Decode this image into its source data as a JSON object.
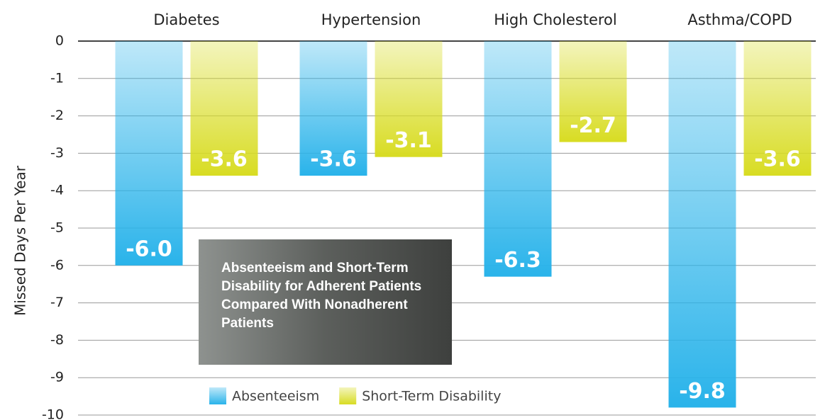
{
  "chart_data": {
    "type": "bar",
    "title": "Absenteeism and Short-Term Disability for Adherent Patients Compared With Nonadherent Patients",
    "y_label": "Missed Days Per Year",
    "categories": [
      "Diabetes",
      "Hypertension",
      "High Cholesterol",
      "Asthma/COPD"
    ],
    "series": [
      {
        "name": "Absenteeism",
        "color": "#29b3ea",
        "values": [
          -6.0,
          -3.6,
          -6.3,
          -9.8
        ],
        "value_labels": [
          "-6.0",
          "-3.6",
          "-6.3",
          "-9.8"
        ]
      },
      {
        "name": "Short-Term Disability",
        "color": "#d8dc22",
        "values": [
          -3.6,
          -3.1,
          -2.7,
          -3.6
        ],
        "value_labels": [
          "-3.6",
          "-3.1",
          "-2.7",
          "-3.6"
        ]
      }
    ],
    "ylim": [
      -10,
      0
    ],
    "yticks": [
      0,
      -1,
      -2,
      -3,
      -4,
      -5,
      -6,
      -7,
      -8,
      -9,
      -10
    ],
    "grid": true
  }
}
